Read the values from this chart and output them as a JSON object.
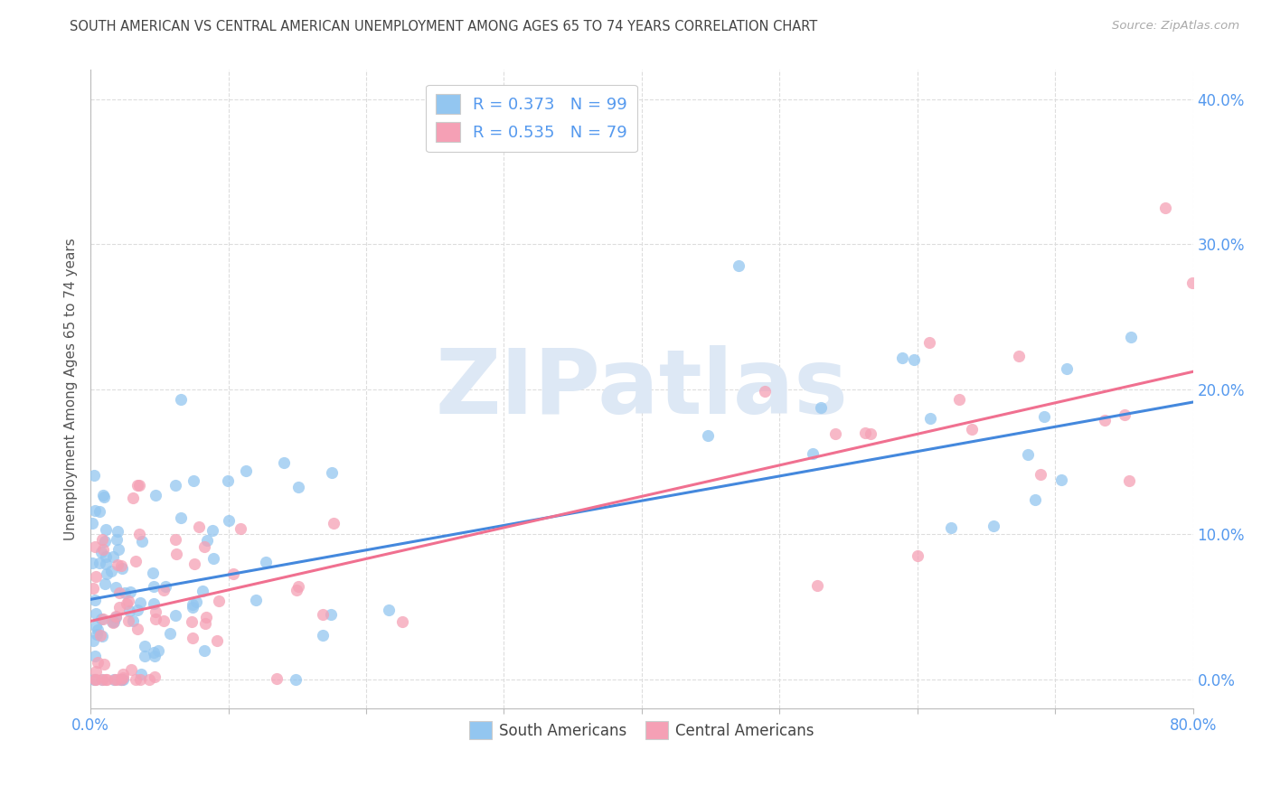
{
  "title": "SOUTH AMERICAN VS CENTRAL AMERICAN UNEMPLOYMENT AMONG AGES 65 TO 74 YEARS CORRELATION CHART",
  "source": "Source: ZipAtlas.com",
  "ylabel": "Unemployment Among Ages 65 to 74 years",
  "xlim": [
    0.0,
    0.8
  ],
  "ylim": [
    -0.02,
    0.42
  ],
  "watermark_text": "ZIPatlas",
  "south_american_R": 0.373,
  "south_american_N": 99,
  "central_american_R": 0.535,
  "central_american_N": 79,
  "sa_color": "#93c6f0",
  "ca_color": "#f5a0b5",
  "sa_line_color": "#4488dd",
  "ca_line_color": "#f07090",
  "grid_color": "#dddddd",
  "bg_color": "#ffffff",
  "title_color": "#444444",
  "axis_label_color": "#5599ee",
  "tick_color": "#5599ee",
  "legend_text_color": "#5599ee",
  "source_color": "#aaaaaa",
  "watermark_color": "#dde8f5",
  "x_ticks": [
    0.0,
    0.1,
    0.2,
    0.3,
    0.4,
    0.5,
    0.6,
    0.7,
    0.8
  ],
  "y_ticks": [
    0.0,
    0.1,
    0.2,
    0.3,
    0.4
  ],
  "sa_intercept": 0.055,
  "sa_slope": 0.17,
  "ca_intercept": 0.04,
  "ca_slope": 0.215
}
